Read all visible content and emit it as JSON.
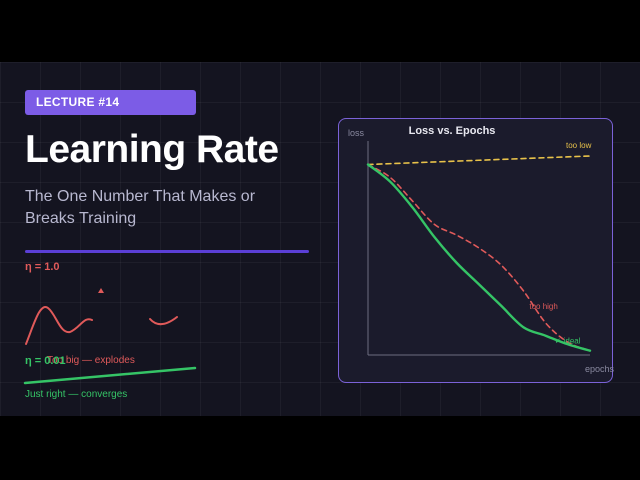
{
  "lecture": {
    "badge": "LECTURE #14",
    "title": "Learning Rate",
    "subtitle": "The One Number That Makes or Breaks Training"
  },
  "left_annotations": {
    "high_eta": "η = 1.0",
    "explodes": "Too big — explodes",
    "low_eta": "η = 0.01",
    "converges": "Just right — converges"
  },
  "colors": {
    "accent": "#7c5ce6",
    "red": "#e05a5a",
    "green": "#35c466",
    "yellow": "#e8c24a",
    "background": "#141420"
  },
  "chart_data": {
    "type": "line",
    "title": "Loss vs. Epochs",
    "xlabel": "epochs",
    "ylabel": "loss",
    "xlim": [
      0,
      10
    ],
    "ylim": [
      0,
      10
    ],
    "grid": false,
    "series": [
      {
        "name": "too low",
        "color": "#e8c24a",
        "style": "dashed",
        "x": [
          0,
          10
        ],
        "y": [
          8.9,
          9.3
        ]
      },
      {
        "name": "too high",
        "color": "#e05a5a",
        "style": "dashed",
        "x": [
          0,
          1.0,
          2.0,
          3.0,
          4.0,
          5.0,
          6.0,
          7.0,
          8.0,
          9.0,
          10.0
        ],
        "y": [
          8.9,
          8.3,
          7.2,
          6.1,
          5.6,
          5.0,
          4.2,
          3.0,
          1.5,
          0.6,
          0.2
        ]
      },
      {
        "name": "✓ ideal",
        "color": "#35c466",
        "style": "solid",
        "x": [
          0,
          1.0,
          2.0,
          3.0,
          4.0,
          5.0,
          6.0,
          7.0,
          8.0,
          9.0,
          10.0
        ],
        "y": [
          8.9,
          8.1,
          6.9,
          5.5,
          4.3,
          3.3,
          2.3,
          1.3,
          0.9,
          0.5,
          0.2
        ]
      }
    ]
  }
}
